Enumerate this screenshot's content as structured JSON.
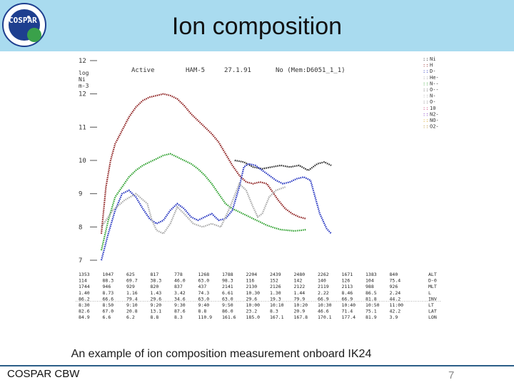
{
  "header": {
    "title": "Ion composition",
    "logo_text": "COSPAR"
  },
  "caption": "An example of ion composition measurement onboard IK24",
  "footer": {
    "left": "COSPAR CBW",
    "page": "7"
  },
  "colors": {
    "header_bg": "#a9dbef",
    "footer_rule": "#2b5e88"
  },
  "chart_data": {
    "type": "line",
    "top_labels": [
      "Active",
      "HAM-5",
      "27.1.91",
      "No (Mem:D6051_1_1)"
    ],
    "ylabel_lines": [
      "log",
      "Ni",
      "m-3"
    ],
    "y_ticks": [
      "12",
      "12",
      "11",
      "10",
      "9",
      "8",
      "7"
    ],
    "ylim": [
      7,
      13
    ],
    "xlim": [
      0,
      100
    ],
    "legend": [
      "Ni",
      "H",
      "D-",
      "He-",
      "N--",
      "O--",
      "N-",
      "O-",
      "10",
      "N2-",
      "NO-",
      "O2-"
    ],
    "series": [
      {
        "name": "Ni",
        "color": "#222222",
        "points": [
          [
            58,
            10.0
          ],
          [
            62,
            9.95
          ],
          [
            66,
            9.8
          ],
          [
            70,
            9.75
          ],
          [
            74,
            9.8
          ],
          [
            78,
            9.85
          ],
          [
            82,
            9.8
          ],
          [
            86,
            9.85
          ],
          [
            90,
            9.7
          ],
          [
            94,
            9.9
          ],
          [
            97,
            9.95
          ],
          [
            100,
            9.85
          ]
        ]
      },
      {
        "name": "O+",
        "color": "#8b1a1a",
        "points": [
          [
            0,
            7.8
          ],
          [
            2,
            9.2
          ],
          [
            4,
            10.0
          ],
          [
            6,
            10.5
          ],
          [
            9,
            10.9
          ],
          [
            12,
            11.3
          ],
          [
            15,
            11.6
          ],
          [
            18,
            11.8
          ],
          [
            21,
            11.9
          ],
          [
            24,
            11.95
          ],
          [
            27,
            12.0
          ],
          [
            30,
            11.95
          ],
          [
            33,
            11.85
          ],
          [
            36,
            11.65
          ],
          [
            39,
            11.4
          ],
          [
            42,
            11.2
          ],
          [
            45,
            11.0
          ],
          [
            48,
            10.8
          ],
          [
            51,
            10.55
          ],
          [
            54,
            10.2
          ],
          [
            57,
            9.85
          ],
          [
            60,
            9.55
          ],
          [
            63,
            9.35
          ],
          [
            66,
            9.3
          ],
          [
            69,
            9.35
          ],
          [
            72,
            9.3
          ],
          [
            74,
            9.1
          ],
          [
            77,
            8.8
          ],
          [
            80,
            8.55
          ],
          [
            83,
            8.4
          ],
          [
            86,
            8.3
          ],
          [
            89,
            8.25
          ]
        ]
      },
      {
        "name": "H+",
        "color": "#2ca02c",
        "points": [
          [
            0,
            7.3
          ],
          [
            3,
            8.2
          ],
          [
            6,
            8.9
          ],
          [
            9,
            9.2
          ],
          [
            12,
            9.5
          ],
          [
            15,
            9.7
          ],
          [
            18,
            9.85
          ],
          [
            21,
            9.95
          ],
          [
            24,
            10.05
          ],
          [
            27,
            10.15
          ],
          [
            30,
            10.2
          ],
          [
            33,
            10.1
          ],
          [
            36,
            10.0
          ],
          [
            39,
            9.9
          ],
          [
            42,
            9.75
          ],
          [
            45,
            9.55
          ],
          [
            48,
            9.3
          ],
          [
            51,
            9.0
          ],
          [
            54,
            8.7
          ],
          [
            57,
            8.55
          ],
          [
            60,
            8.45
          ],
          [
            63,
            8.35
          ],
          [
            66,
            8.25
          ],
          [
            69,
            8.15
          ],
          [
            72,
            8.05
          ],
          [
            75,
            7.98
          ],
          [
            78,
            7.92
          ],
          [
            81,
            7.9
          ],
          [
            84,
            7.88
          ],
          [
            87,
            7.9
          ],
          [
            89,
            7.92
          ]
        ]
      },
      {
        "name": "He+",
        "color": "#1f2fbf",
        "points": [
          [
            0,
            7.0
          ],
          [
            3,
            7.8
          ],
          [
            6,
            8.5
          ],
          [
            9,
            9.0
          ],
          [
            12,
            9.1
          ],
          [
            15,
            8.9
          ],
          [
            18,
            8.55
          ],
          [
            21,
            8.25
          ],
          [
            24,
            8.1
          ],
          [
            27,
            8.2
          ],
          [
            30,
            8.5
          ],
          [
            33,
            8.7
          ],
          [
            36,
            8.55
          ],
          [
            39,
            8.3
          ],
          [
            42,
            8.2
          ],
          [
            45,
            8.3
          ],
          [
            48,
            8.4
          ],
          [
            51,
            8.2
          ],
          [
            54,
            8.25
          ],
          [
            57,
            8.5
          ],
          [
            60,
            9.2
          ],
          [
            62,
            9.8
          ],
          [
            64,
            9.9
          ],
          [
            67,
            9.85
          ],
          [
            70,
            9.7
          ],
          [
            73,
            9.55
          ],
          [
            76,
            9.4
          ],
          [
            79,
            9.3
          ],
          [
            82,
            9.35
          ],
          [
            85,
            9.45
          ],
          [
            88,
            9.5
          ],
          [
            91,
            9.4
          ],
          [
            95,
            8.4
          ],
          [
            98,
            7.95
          ],
          [
            100,
            7.8
          ]
        ]
      },
      {
        "name": "N+",
        "color": "#a8a8a8",
        "points": [
          [
            0,
            8.0
          ],
          [
            5,
            8.5
          ],
          [
            10,
            8.8
          ],
          [
            15,
            9.0
          ],
          [
            20,
            8.7
          ],
          [
            22,
            8.2
          ],
          [
            24,
            7.9
          ],
          [
            27,
            7.8
          ],
          [
            30,
            8.1
          ],
          [
            33,
            8.6
          ],
          [
            36,
            8.4
          ],
          [
            40,
            8.1
          ],
          [
            44,
            8.0
          ],
          [
            48,
            8.1
          ],
          [
            52,
            8.0
          ],
          [
            56,
            8.6
          ],
          [
            60,
            9.3
          ],
          [
            63,
            9.1
          ],
          [
            66,
            8.6
          ],
          [
            68,
            8.3
          ],
          [
            70,
            8.4
          ],
          [
            73,
            8.9
          ],
          [
            76,
            9.1
          ],
          [
            80,
            9.2
          ]
        ]
      }
    ],
    "table": {
      "rows": [
        [
          "1353",
          "1047",
          "625",
          "817",
          "778",
          "1268",
          "1788",
          "2204",
          "2439",
          "2480",
          "2262",
          "1671",
          "1383",
          "840"
        ],
        [
          "114",
          "88.3",
          "69.7",
          "38.3",
          "46.0",
          "63.0",
          "98.3",
          "116",
          "152",
          "142",
          "140",
          "126",
          "104",
          "75.4"
        ],
        [
          "1744",
          "946",
          "929",
          "820",
          "837",
          "437",
          "2141",
          "2130",
          "2126",
          "2122",
          "2119",
          "2113",
          "988",
          "926"
        ],
        [
          "1.40",
          "8.73",
          "1.16",
          "1.43",
          "3.42",
          "74.3",
          "6.61",
          "10.30",
          "1.30",
          "1.44",
          "2.22",
          "8.46",
          "86.5",
          "2.24"
        ],
        [
          "86.2",
          "66.6",
          "79.4",
          "29.6",
          "34.6",
          "63.0",
          "63.0",
          "29.6",
          "19.3",
          "79.9",
          "66.9",
          "66.9",
          "81.8",
          "44.2"
        ],
        [
          "8:30",
          "8:50",
          "9:10",
          "9:20",
          "9:30",
          "9:40",
          "9:50",
          "10:00",
          "10:10",
          "10:20",
          "10:30",
          "10:40",
          "10:50",
          "11:00"
        ],
        [
          "82.6",
          "67.0",
          "20.8",
          "13.1",
          "87.6",
          "8.8",
          "86.0",
          "23.2",
          "8.3",
          "20.9",
          "46.6",
          "71.4",
          "75.1",
          "42.2"
        ],
        [
          "84.9",
          "6.6",
          "6.2",
          "8.8",
          "8.3",
          "110.9",
          "161.6",
          "185.0",
          "167.1",
          "167.8",
          "170.1",
          "177.4",
          "81.9",
          "3.9"
        ]
      ],
      "row_labels": [
        "ALT",
        "D-0",
        "MLT",
        "L",
        "INV",
        "LT",
        "LAT",
        "LON"
      ]
    }
  }
}
